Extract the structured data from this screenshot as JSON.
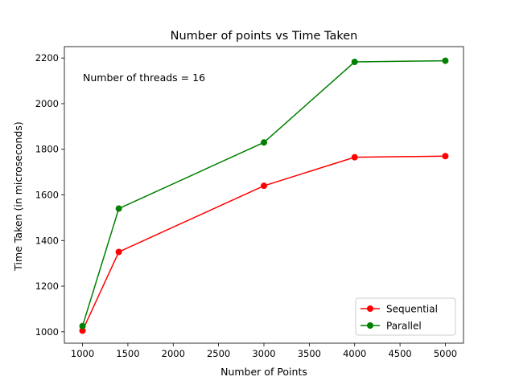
{
  "chart_data": {
    "type": "line",
    "title": "Number of points vs Time Taken",
    "xlabel": "Number of Points",
    "ylabel": "Time Taken (in microseconds)",
    "annotation": "Number of threads = 16",
    "xlim": [
      800,
      5200
    ],
    "ylim": [
      950,
      2250
    ],
    "xticks": [
      1000,
      1500,
      2000,
      2500,
      3000,
      3500,
      4000,
      4500,
      5000
    ],
    "yticks": [
      1000,
      1200,
      1400,
      1600,
      1800,
      2000,
      2200
    ],
    "grid": false,
    "legend_position": "lower-right",
    "x": [
      1000,
      1400,
      3000,
      4000,
      5000
    ],
    "series": [
      {
        "name": "Sequential",
        "color": "#ff0000",
        "values": [
          1005,
          1350,
          1640,
          1765,
          1770
        ]
      },
      {
        "name": "Parallel",
        "color": "#008000",
        "values": [
          1025,
          1540,
          1830,
          2183,
          2188
        ]
      }
    ]
  }
}
